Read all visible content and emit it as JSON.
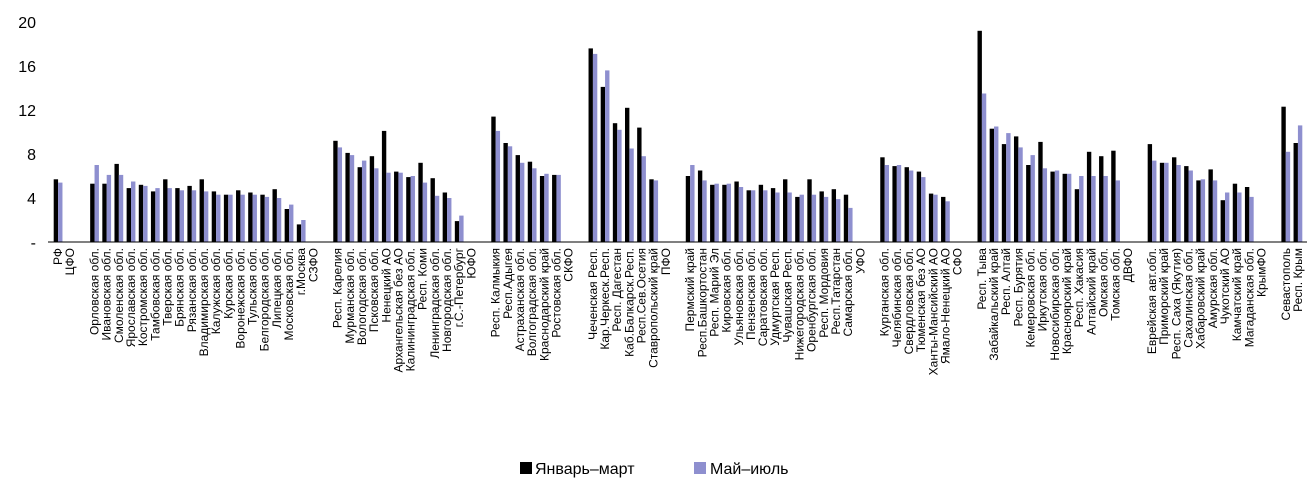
{
  "chart_data": {
    "type": "bar",
    "ylim": [
      0,
      20
    ],
    "yticks": [
      0,
      4,
      8,
      12,
      16,
      20
    ],
    "ytick_labels": [
      "-",
      "4",
      "8",
      "12",
      "16",
      "20"
    ],
    "grid": false,
    "legend_position": "bottom",
    "categories": [
      "РФ",
      "ЦФО",
      "",
      "Орловская обл.",
      "Ивановская обл.",
      "Смоленская обл.",
      "Ярославская обл.",
      "Костромская обл.",
      "Тамбовская обл.",
      "Тверская обл.",
      "Брянская обл.",
      "Рязанская обл.",
      "Владимирская обл.",
      "Калужская обл.",
      "Курская обл.",
      "Воронежская обл.",
      "Тульская обл.",
      "Белгородская обл.",
      "Липецкая обл.",
      "Московская обл.",
      "г.Москва",
      "СЗФО",
      "",
      "Респ. Карелия",
      "Мурманская обл.",
      "Вологодская обл.",
      "Псковская обл.",
      "Ненецкий АО",
      "Архангельская без АО",
      "Калининградская обл.",
      "Респ. Коми",
      "Ленинградская обл.",
      "Новгородская обл.",
      "г.С.-Петербург",
      "ЮФО",
      "",
      "Респ. Калмыкия",
      "Респ.Адыгея",
      "Астраханская обл.",
      "Волгоградская обл.",
      "Краснодарский край",
      "Ростовская обл.",
      "СКФО",
      "",
      "Чеченская Респ.",
      "Кар.Черкеск.Респ.",
      "Респ. Дагестан",
      "Каб.Балкарск.Респ.",
      "Респ.Сев.Осетия",
      "Ставропольский край",
      "ПФО",
      "",
      "Пермский край",
      "Респ.Башкортостан",
      "Респ. Марий Эл",
      "Кировская обл.",
      "Ульяновская обл.",
      "Пензенская обл.",
      "Саратовская обл.",
      "Удмуртская Респ.",
      "Чувашская Респ.",
      "Нижегородская обл.",
      "Оренбургская обл.",
      "Респ. Мордовия",
      "Респ.Татарстан",
      "Самарская обл.",
      "УФО",
      "",
      "Курганская обл.",
      "Челябинская обл.",
      "Свердловская обл.",
      "Тюменская без АО",
      "Ханты-Мансийский АО",
      "Ямало-Ненецкий АО",
      "СФО",
      "",
      "Респ. Тыва",
      "Забайкальский край",
      "Респ. Алтай",
      "Респ. Бурятия",
      "Кемеровская обл.",
      "Иркутская обл.",
      "Новосибирская обл.",
      "Красноярский край",
      "Респ. Хакасия",
      "Алтайский край",
      "Омская обл.",
      "Томская обл.",
      "ДВФО",
      "",
      "Еврейская авт.обл.",
      "Приморский край",
      "Респ. Саха (Якутия)",
      "Сахалинская обл.",
      "Хабаровский край",
      "Амурская обл.",
      "Чукотский АО",
      "Камчатский край",
      "Магаданская обл.",
      "КрымФО",
      "",
      "Севастополь",
      "Респ. Крым"
    ],
    "series": [
      {
        "name": "Январь–март",
        "color": "#000000",
        "values": [
          5.7,
          0,
          0,
          5.3,
          5.3,
          7.1,
          4.9,
          5.2,
          4.6,
          5.7,
          4.9,
          5.1,
          5.7,
          4.6,
          4.3,
          4.7,
          4.5,
          4.3,
          4.8,
          3.0,
          1.6,
          0,
          0,
          9.2,
          8.1,
          6.8,
          7.8,
          10.1,
          6.4,
          5.9,
          7.2,
          5.8,
          4.5,
          1.9,
          0,
          0,
          11.4,
          9.0,
          7.9,
          7.3,
          6.0,
          6.1,
          0,
          0,
          17.6,
          14.1,
          10.8,
          12.2,
          10.4,
          5.7,
          0,
          0,
          6.0,
          6.5,
          5.2,
          5.2,
          5.5,
          4.7,
          5.2,
          4.9,
          5.7,
          4.1,
          5.7,
          4.6,
          4.8,
          4.3,
          0,
          0,
          7.7,
          6.9,
          6.8,
          6.4,
          4.4,
          4.1,
          0,
          0,
          19.2,
          10.3,
          8.9,
          9.6,
          7.0,
          9.1,
          6.4,
          6.2,
          4.8,
          8.2,
          7.8,
          8.3,
          0,
          0,
          8.9,
          7.2,
          7.7,
          6.9,
          5.6,
          6.6,
          3.8,
          5.3,
          5.0,
          0,
          0,
          12.3,
          9.0
        ]
      },
      {
        "name": "Май–июль",
        "color": "#8e8fcf",
        "values": [
          5.4,
          0,
          0,
          7.0,
          6.1,
          6.1,
          5.5,
          5.1,
          4.9,
          4.9,
          4.7,
          4.7,
          4.6,
          4.3,
          4.3,
          4.3,
          4.3,
          4.1,
          4.0,
          3.4,
          2.0,
          0,
          0,
          8.6,
          7.9,
          7.4,
          6.7,
          6.3,
          6.3,
          6.0,
          5.4,
          4.2,
          4.0,
          2.4,
          0,
          0,
          10.1,
          8.7,
          7.2,
          6.7,
          6.2,
          6.1,
          0,
          0,
          17.1,
          15.6,
          10.2,
          8.5,
          7.8,
          5.6,
          0,
          0,
          7.0,
          5.6,
          5.3,
          5.3,
          5.0,
          4.7,
          4.7,
          4.5,
          4.5,
          4.3,
          4.3,
          4.1,
          3.9,
          3.1,
          0,
          0,
          7.0,
          7.0,
          6.5,
          5.9,
          4.3,
          3.7,
          0,
          0,
          13.5,
          10.5,
          9.9,
          8.6,
          7.9,
          6.7,
          6.5,
          6.2,
          6.0,
          6.0,
          6.0,
          5.6,
          0,
          0,
          7.4,
          7.2,
          7.0,
          6.5,
          5.7,
          5.6,
          4.5,
          4.5,
          4.1,
          0,
          0,
          8.2,
          10.6
        ]
      }
    ]
  }
}
